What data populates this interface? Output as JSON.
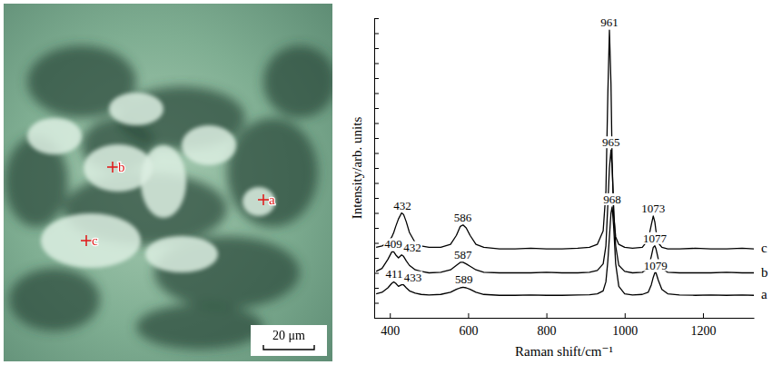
{
  "image": {
    "markers": [
      "a",
      "b",
      "c"
    ],
    "scale_bar": "20 μm"
  },
  "chart_data": {
    "type": "line",
    "x_label": "Raman shift/cm⁻¹",
    "y_label": "Intensity/arb. units",
    "xlim": [
      360,
      1330
    ],
    "xticks": [
      400,
      600,
      800,
      1000,
      1200
    ],
    "ylim": [
      0,
      10
    ],
    "yticks": [
      0,
      0.5,
      1,
      1.5,
      2,
      2.5,
      3,
      3.5,
      4,
      4.5,
      5,
      5.5,
      6,
      6.5,
      7,
      7.5,
      8,
      8.5,
      9,
      9.5,
      10
    ],
    "tick_labels": "x",
    "grid": false,
    "x": [
      365,
      380,
      395,
      405,
      410,
      415,
      422,
      430,
      435,
      442,
      450,
      465,
      480,
      500,
      530,
      555,
      570,
      580,
      587,
      595,
      605,
      620,
      640,
      680,
      720,
      760,
      800,
      840,
      880,
      910,
      930,
      945,
      952,
      957,
      961,
      965,
      968,
      972,
      977,
      985,
      1000,
      1020,
      1045,
      1060,
      1068,
      1073,
      1077,
      1080,
      1086,
      1095,
      1110,
      1140,
      1180,
      1220,
      1260,
      1300,
      1330
    ],
    "series": [
      {
        "name": "a",
        "color": "#000000",
        "values": [
          0.8,
          0.85,
          1.0,
          1.15,
          1.2,
          1.15,
          1.05,
          1.1,
          1.1,
          1.0,
          0.9,
          0.82,
          0.78,
          0.76,
          0.78,
          0.85,
          0.95,
          1.0,
          1.02,
          1.0,
          0.95,
          0.85,
          0.78,
          0.75,
          0.75,
          0.76,
          0.75,
          0.75,
          0.76,
          0.77,
          0.8,
          0.9,
          1.2,
          1.9,
          2.7,
          3.5,
          3.7,
          3.0,
          1.8,
          1.05,
          0.8,
          0.76,
          0.78,
          0.85,
          1.1,
          1.35,
          1.5,
          1.5,
          1.25,
          0.95,
          0.8,
          0.76,
          0.75,
          0.76,
          0.75,
          0.76,
          0.75
        ],
        "annotations": [
          {
            "text": "411",
            "x": 411,
            "y": 1.2
          },
          {
            "text": "433",
            "x": 433,
            "y": 1.1
          },
          {
            "text": "589",
            "x": 589,
            "y": 1.02
          },
          {
            "text": "968",
            "x": 968,
            "y": 3.7
          },
          {
            "text": "1079",
            "x": 1079,
            "y": 1.5
          }
        ]
      },
      {
        "name": "b",
        "color": "#000000",
        "values": [
          1.55,
          1.65,
          1.95,
          2.2,
          2.2,
          2.1,
          2.0,
          2.1,
          2.05,
          1.9,
          1.75,
          1.6,
          1.55,
          1.5,
          1.52,
          1.6,
          1.75,
          1.85,
          1.85,
          1.8,
          1.72,
          1.6,
          1.52,
          1.5,
          1.5,
          1.5,
          1.52,
          1.5,
          1.5,
          1.52,
          1.58,
          1.8,
          2.4,
          3.8,
          5.0,
          5.6,
          5.0,
          3.6,
          2.4,
          1.75,
          1.55,
          1.5,
          1.52,
          1.65,
          2.05,
          2.35,
          2.4,
          2.3,
          1.95,
          1.65,
          1.52,
          1.5,
          1.5,
          1.5,
          1.52,
          1.5,
          1.5
        ],
        "annotations": [
          {
            "text": "409",
            "x": 409,
            "y": 2.2
          },
          {
            "text": "432",
            "x": 432,
            "y": 2.1
          },
          {
            "text": "587",
            "x": 587,
            "y": 1.85
          },
          {
            "text": "965",
            "x": 965,
            "y": 5.6
          },
          {
            "text": "1077",
            "x": 1077,
            "y": 2.4
          }
        ]
      },
      {
        "name": "c",
        "color": "#000000",
        "values": [
          2.35,
          2.4,
          2.5,
          2.7,
          2.85,
          3.05,
          3.3,
          3.5,
          3.45,
          3.2,
          2.85,
          2.5,
          2.4,
          2.35,
          2.35,
          2.45,
          2.75,
          3.05,
          3.1,
          3.0,
          2.75,
          2.45,
          2.35,
          2.3,
          2.3,
          2.32,
          2.3,
          2.3,
          2.32,
          2.35,
          2.45,
          2.9,
          4.2,
          7.5,
          9.6,
          7.8,
          5.2,
          3.4,
          2.7,
          2.45,
          2.35,
          2.32,
          2.35,
          2.6,
          3.1,
          3.4,
          3.2,
          2.9,
          2.5,
          2.35,
          2.3,
          2.3,
          2.32,
          2.3,
          2.3,
          2.32,
          2.3
        ],
        "annotations": [
          {
            "text": "432",
            "x": 432,
            "y": 3.5
          },
          {
            "text": "586",
            "x": 586,
            "y": 3.1
          },
          {
            "text": "961",
            "x": 961,
            "y": 9.6
          },
          {
            "text": "1073",
            "x": 1073,
            "y": 3.4
          }
        ]
      }
    ]
  }
}
